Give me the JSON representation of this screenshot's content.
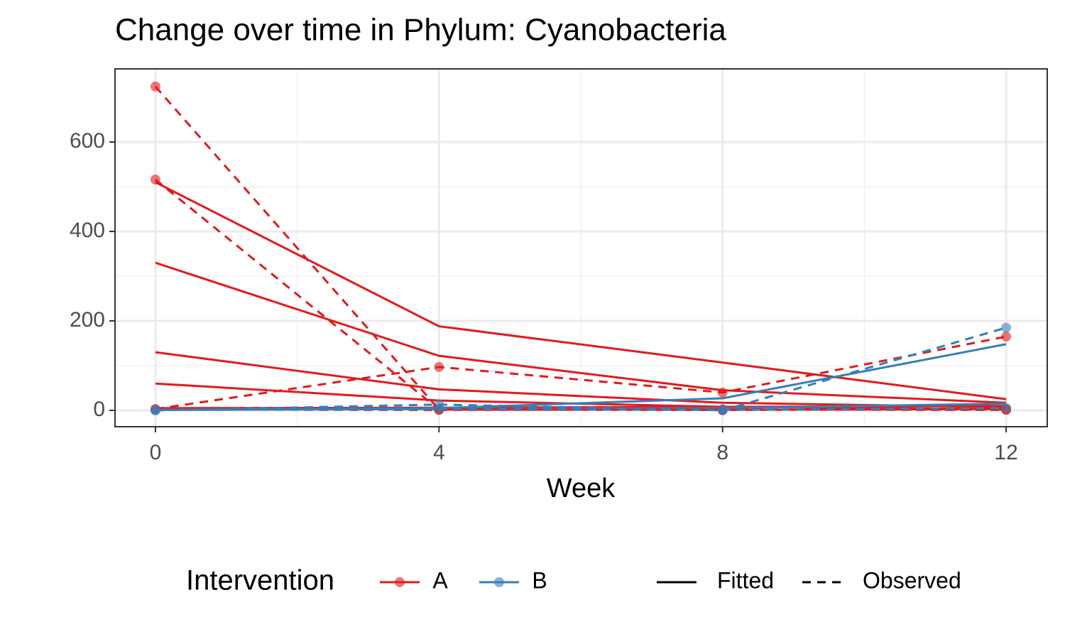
{
  "chart_data": {
    "type": "line",
    "title": "Change over time in Phylum: Cyanobacteria",
    "x_label": "Week",
    "x": [
      0,
      4,
      8,
      12
    ],
    "xlim": [
      -0.57,
      12.58
    ],
    "ylim": [
      -36.5,
      763.5
    ],
    "xticks": [
      0,
      4,
      8,
      12
    ],
    "yticks": [
      0,
      200,
      400,
      600
    ],
    "x_minor_ticks": [
      2,
      6,
      10
    ],
    "y_minor_ticks": [
      100,
      300,
      500
    ],
    "grid": true,
    "legend": {
      "color_title": "Intervention",
      "colors": [
        {
          "name": "A",
          "color": "#e41a1c"
        },
        {
          "name": "B",
          "color": "#377eb8"
        }
      ],
      "linetypes": [
        {
          "name": "Fitted",
          "dashed": false
        },
        {
          "name": "Observed",
          "dashed": true
        }
      ]
    },
    "series": [
      {
        "intervention": "A",
        "line": "Fitted",
        "color": "#e41a1c",
        "values": [
          510,
          188,
          107,
          25
        ]
      },
      {
        "intervention": "A",
        "line": "Fitted",
        "color": "#e41a1c",
        "values": [
          330,
          122,
          45,
          17
        ]
      },
      {
        "intervention": "A",
        "line": "Fitted",
        "color": "#e41a1c",
        "values": [
          130,
          47,
          17,
          7
        ]
      },
      {
        "intervention": "A",
        "line": "Fitted",
        "color": "#e41a1c",
        "values": [
          60,
          22,
          8,
          3
        ]
      },
      {
        "intervention": "A",
        "line": "Fitted",
        "color": "#e41a1c",
        "values": [
          5,
          6,
          8,
          10
        ]
      },
      {
        "intervention": "B",
        "line": "Fitted",
        "color": "#377eb8",
        "values": [
          1,
          5,
          27,
          148
        ]
      },
      {
        "intervention": "B",
        "line": "Fitted",
        "color": "#377eb8",
        "values": [
          1,
          3,
          5,
          15
        ]
      },
      {
        "intervention": "A",
        "line": "Observed",
        "color": "#e41a1c",
        "values": [
          724,
          2,
          2,
          2
        ]
      },
      {
        "intervention": "A",
        "line": "Observed",
        "color": "#e41a1c",
        "values": [
          516,
          2,
          1,
          3
        ]
      },
      {
        "intervention": "A",
        "line": "Observed",
        "color": "#e41a1c",
        "values": [
          3,
          97,
          40,
          165
        ]
      },
      {
        "intervention": "A",
        "line": "Observed",
        "color": "#e41a1c",
        "values": [
          2,
          1,
          2,
          1
        ]
      },
      {
        "intervention": "B",
        "line": "Observed",
        "color": "#377eb8",
        "values": [
          0,
          13,
          0,
          185
        ]
      },
      {
        "intervention": "B",
        "line": "Observed",
        "color": "#377eb8",
        "values": [
          1,
          3,
          1,
          5
        ]
      }
    ]
  }
}
